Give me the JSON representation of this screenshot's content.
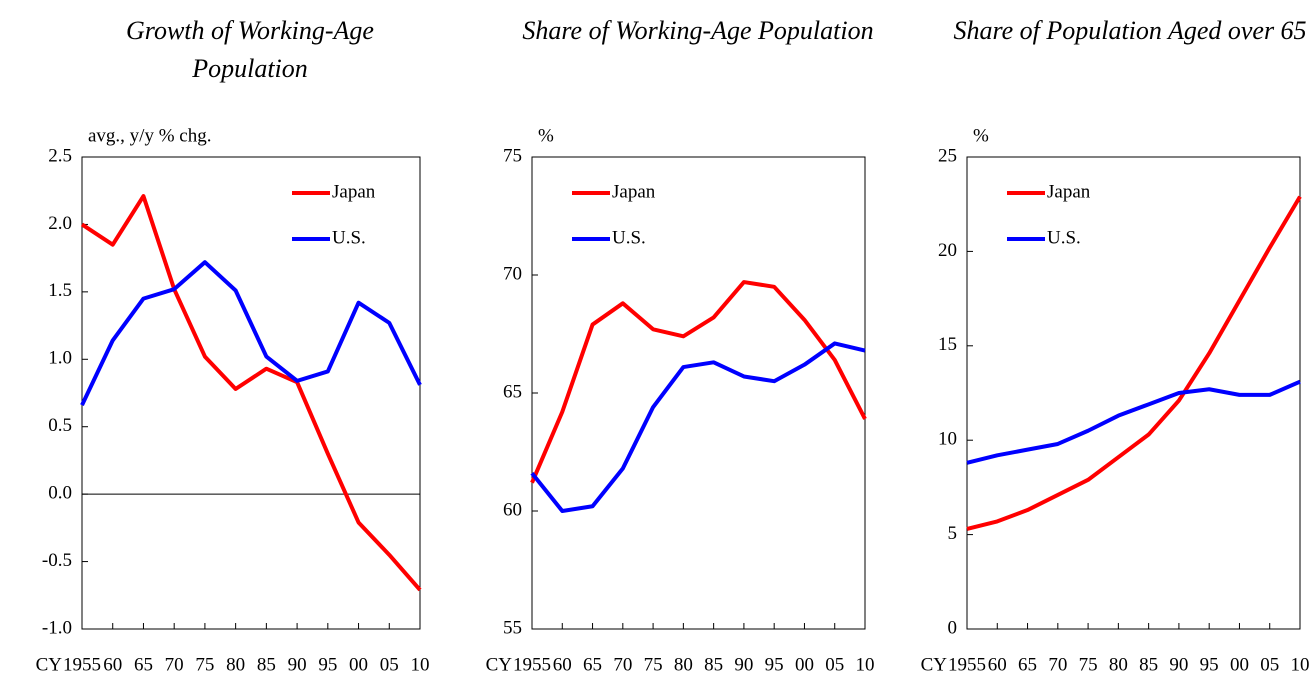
{
  "chart_data": [
    {
      "type": "line",
      "title": "Growth of Working-Age Population",
      "unit_label": "avg., y/y % chg.",
      "x_prefix": "CY",
      "categories": [
        "1955",
        "60",
        "65",
        "70",
        "75",
        "80",
        "85",
        "90",
        "95",
        "00",
        "05",
        "10"
      ],
      "series": [
        {
          "name": "Japan",
          "color": "#ff0000",
          "values": [
            2.0,
            1.85,
            2.21,
            1.52,
            1.02,
            0.78,
            0.93,
            0.83,
            0.3,
            -0.21,
            -0.45,
            -0.71
          ]
        },
        {
          "name": "U.S.",
          "color": "#0000ff",
          "values": [
            0.66,
            1.14,
            1.45,
            1.52,
            1.72,
            1.51,
            1.02,
            0.84,
            0.91,
            1.42,
            1.27,
            0.81
          ]
        }
      ],
      "ylim": [
        -1,
        2.5
      ],
      "yticks": [
        {
          "value": -1,
          "label": "-1.0"
        },
        -0.5,
        {
          "value": 0,
          "label": "0.0"
        },
        0.5,
        {
          "value": 1,
          "label": "1.0"
        },
        1.5,
        {
          "value": 2,
          "label": "2.0"
        },
        2.5
      ],
      "zero_line": true,
      "legend": "upper right"
    },
    {
      "type": "line",
      "title": "Share of Working-Age Population",
      "unit_label": "%",
      "x_prefix": "CY",
      "categories": [
        "1955",
        "60",
        "65",
        "70",
        "75",
        "80",
        "85",
        "90",
        "95",
        "00",
        "05",
        "10"
      ],
      "series": [
        {
          "name": "Japan",
          "color": "#ff0000",
          "values": [
            61.2,
            64.2,
            67.9,
            68.8,
            67.7,
            67.4,
            68.2,
            69.7,
            69.5,
            68.1,
            66.4,
            63.9
          ]
        },
        {
          "name": "U.S.",
          "color": "#0000ff",
          "values": [
            61.6,
            60.0,
            60.2,
            61.8,
            64.4,
            66.1,
            66.3,
            65.7,
            65.5,
            66.2,
            67.1,
            66.8
          ]
        }
      ],
      "ylim": [
        55,
        75
      ],
      "yticks": [
        55,
        60,
        65,
        70,
        75
      ],
      "zero_line": false,
      "legend": "upper left"
    },
    {
      "type": "line",
      "title": "Share of Population Aged over 65",
      "unit_label": "%",
      "x_prefix": "CY",
      "categories": [
        "1955",
        "60",
        "65",
        "70",
        "75",
        "80",
        "85",
        "90",
        "95",
        "00",
        "05",
        "10"
      ],
      "series": [
        {
          "name": "Japan",
          "color": "#ff0000",
          "values": [
            5.3,
            5.7,
            6.3,
            7.1,
            7.9,
            9.1,
            10.3,
            12.1,
            14.6,
            17.4,
            20.2,
            22.9
          ]
        },
        {
          "name": "U.S.",
          "color": "#0000ff",
          "values": [
            8.8,
            9.2,
            9.5,
            9.8,
            10.5,
            11.3,
            11.9,
            12.5,
            12.7,
            12.4,
            12.4,
            13.1
          ]
        }
      ],
      "ylim": [
        0,
        25
      ],
      "yticks": [
        0,
        5,
        10,
        15,
        20,
        25
      ],
      "zero_line": false,
      "legend": "upper left"
    }
  ]
}
